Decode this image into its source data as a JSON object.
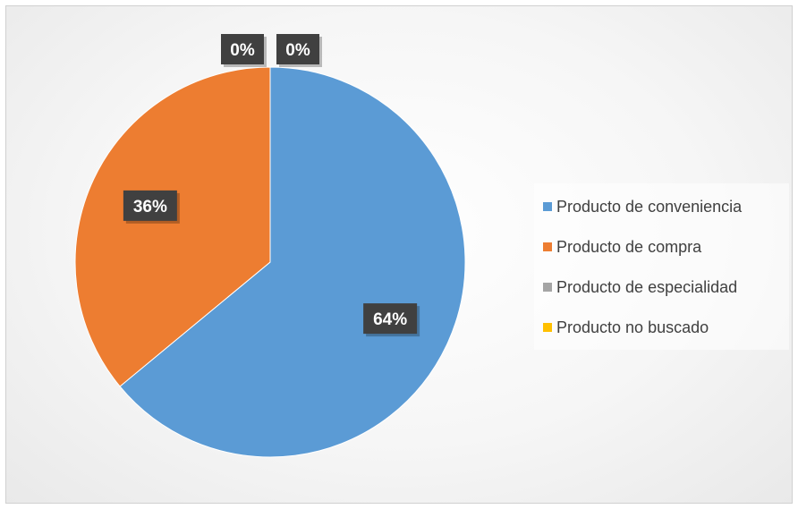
{
  "chart_data": {
    "type": "pie",
    "categories": [
      "Producto de conveniencia",
      "Producto de compra",
      "Producto de especialidad",
      "Producto no buscado"
    ],
    "values": [
      64,
      36,
      0,
      0
    ],
    "data_labels": [
      "64%",
      "36%",
      "0%",
      "0%"
    ],
    "colors": [
      "#5b9bd5",
      "#ed7d31",
      "#a5a5a5",
      "#ffc000"
    ],
    "label_box_color": "#404040",
    "legend_placement": "right",
    "start_angle": "12 o'clock",
    "direction": "clockwise"
  }
}
